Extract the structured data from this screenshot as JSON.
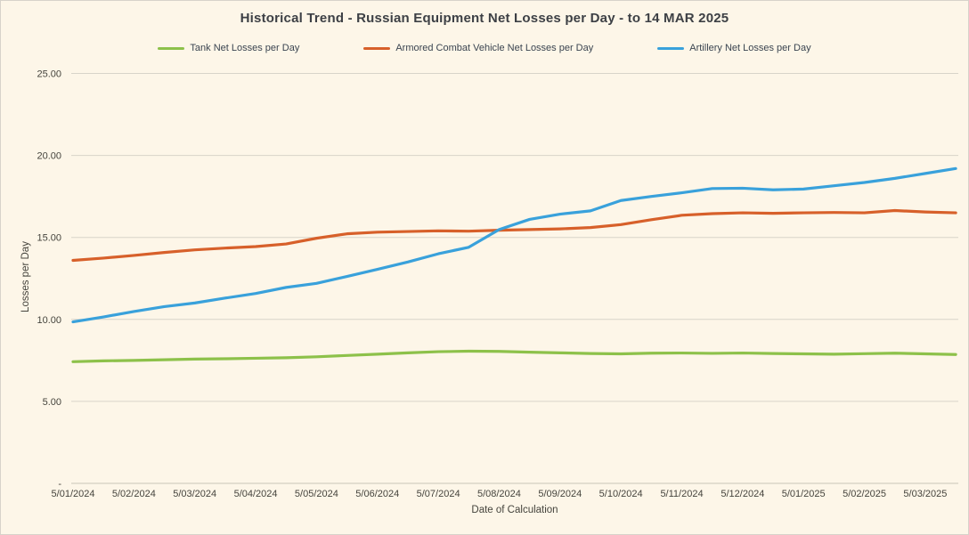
{
  "chart_data": {
    "type": "line",
    "title": "Historical Trend - Russian Equipment Net Losses per Day - to 14 MAR 2025",
    "xlabel": "Date of Calculation",
    "ylabel": "Losses per Day",
    "legend_position": "top",
    "grid": "horizontal",
    "ylim": [
      0,
      25
    ],
    "y_ticks": [
      {
        "value": 25,
        "label": "25.00"
      },
      {
        "value": 20,
        "label": "20.00"
      },
      {
        "value": 15,
        "label": "15.00"
      },
      {
        "value": 10,
        "label": "10.00"
      },
      {
        "value": 5,
        "label": "5.00"
      },
      {
        "value": 0,
        "label": "-"
      }
    ],
    "x_tick_labels": [
      "5/01/2024",
      "5/02/2024",
      "5/03/2024",
      "5/04/2024",
      "5/05/2024",
      "5/06/2024",
      "5/07/2024",
      "5/08/2024",
      "5/09/2024",
      "5/10/2024",
      "5/11/2024",
      "5/12/2024",
      "5/01/2025",
      "5/02/2025",
      "5/03/2025"
    ],
    "x": [
      0,
      0.5,
      1,
      1.5,
      2,
      2.5,
      3,
      3.5,
      4,
      4.5,
      5,
      5.5,
      6,
      6.5,
      7,
      7.5,
      8,
      8.5,
      9,
      9.5,
      10,
      10.5,
      11,
      11.5,
      12,
      12.5,
      13,
      13.5,
      14,
      14.5
    ],
    "series": [
      {
        "name": "Tank Net Losses per Day",
        "color": "#8DC14A",
        "values": [
          7.42,
          7.47,
          7.5,
          7.54,
          7.58,
          7.6,
          7.63,
          7.66,
          7.72,
          7.8,
          7.88,
          7.96,
          8.03,
          8.06,
          8.05,
          8.0,
          7.96,
          7.92,
          7.9,
          7.94,
          7.95,
          7.93,
          7.95,
          7.92,
          7.9,
          7.88,
          7.91,
          7.94,
          7.9,
          7.86
        ]
      },
      {
        "name": "Armored Combat Vehicle Net Losses per Day",
        "color": "#D7602A",
        "values": [
          13.6,
          13.74,
          13.9,
          14.08,
          14.24,
          14.35,
          14.44,
          14.6,
          14.95,
          15.22,
          15.32,
          15.36,
          15.4,
          15.38,
          15.44,
          15.48,
          15.52,
          15.6,
          15.78,
          16.08,
          16.35,
          16.45,
          16.5,
          16.47,
          16.5,
          16.52,
          16.5,
          16.64,
          16.55,
          16.5
        ]
      },
      {
        "name": "Artillery Net Losses per Day",
        "color": "#39A1DB",
        "values": [
          9.85,
          10.15,
          10.48,
          10.78,
          11.0,
          11.3,
          11.58,
          11.95,
          12.2,
          12.62,
          13.05,
          13.5,
          14.0,
          14.4,
          15.48,
          16.1,
          16.42,
          16.62,
          17.25,
          17.5,
          17.72,
          17.98,
          18.0,
          17.9,
          17.95,
          18.15,
          18.35,
          18.6,
          18.9,
          19.2
        ]
      }
    ]
  }
}
